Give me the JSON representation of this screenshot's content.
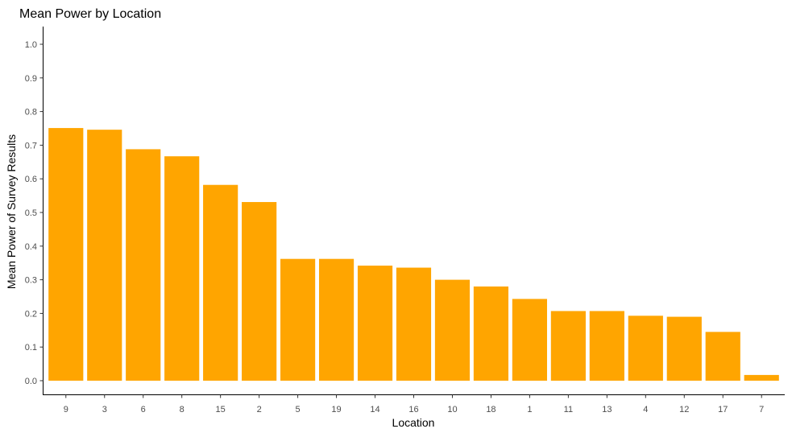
{
  "chart_data": {
    "type": "bar",
    "title": "Mean Power by Location",
    "xlabel": "Location",
    "ylabel": "Mean Power of Survey Results",
    "categories": [
      "9",
      "3",
      "6",
      "8",
      "15",
      "2",
      "5",
      "19",
      "14",
      "16",
      "10",
      "18",
      "1",
      "11",
      "13",
      "4",
      "12",
      "17",
      "7"
    ],
    "values": [
      0.751,
      0.746,
      0.688,
      0.667,
      0.582,
      0.531,
      0.362,
      0.362,
      0.342,
      0.336,
      0.3,
      0.28,
      0.243,
      0.207,
      0.207,
      0.193,
      0.19,
      0.145,
      0.017
    ],
    "yticks": [
      "0.0",
      "0.1",
      "0.2",
      "0.3",
      "0.4",
      "0.5",
      "0.6",
      "0.7",
      "0.8",
      "0.9",
      "1.0"
    ],
    "ylim": [
      0,
      1.05
    ],
    "grid": false,
    "bar_color": "#FFA500"
  }
}
